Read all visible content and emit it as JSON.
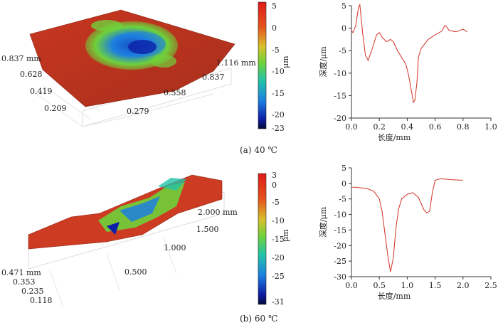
{
  "panels": [
    {
      "caption": "(a) 40 ℃",
      "surface_axes": {
        "y_labels": [
          "0.837 mm",
          "0.628",
          "0.419",
          "0.209"
        ],
        "x_labels": [
          "1.116 mm",
          "0.837",
          "0.558",
          "0.279"
        ]
      },
      "colorbar": {
        "ticks": [
          "5",
          "0",
          "-5",
          "-10",
          "-15",
          "-20",
          "-23"
        ],
        "unit": "μm"
      },
      "colors": {
        "high": "#d42a1e",
        "mid": "#6fd13b",
        "low": "#0d1fa8",
        "base": "#cc3b22"
      }
    },
    {
      "caption": "(b) 60 ℃",
      "surface_axes": {
        "y_labels": [
          "0.471 mm",
          "0.353",
          "0.235",
          "0.118"
        ],
        "x_labels": [
          "2.000 mm",
          "1.500",
          "1.000",
          "0.500"
        ]
      },
      "colorbar": {
        "ticks": [
          "3",
          "0",
          "-5",
          "-10",
          "-15",
          "-20",
          "-25",
          "-31"
        ],
        "unit": "μm"
      },
      "colors": {
        "high": "#d42a1e",
        "mid": "#6fd13b",
        "low": "#0d1fa8",
        "base": "#cc3b22"
      }
    }
  ],
  "chart_data": [
    {
      "type": "line",
      "xlabel": "长度/mm",
      "ylabel": "深度/μm",
      "xlim": [
        0.0,
        1.0
      ],
      "ylim": [
        -20,
        5
      ],
      "xticks": [
        "0.0",
        "0.2",
        "0.4",
        "0.6",
        "0.8",
        "1.0"
      ],
      "yticks": [
        "5",
        "0",
        "-5",
        "-10",
        "-15",
        "-20"
      ],
      "color": "#d33a2c",
      "series": [
        {
          "x": [
            0.0,
            0.01,
            0.03,
            0.05,
            0.06,
            0.08,
            0.1,
            0.12,
            0.15,
            0.18,
            0.2,
            0.22,
            0.25,
            0.28,
            0.3,
            0.33,
            0.36,
            0.39,
            0.41,
            0.43,
            0.445,
            0.455,
            0.47,
            0.48,
            0.5,
            0.55,
            0.6,
            0.65,
            0.67,
            0.68,
            0.7,
            0.75,
            0.8,
            0.83
          ],
          "y": [
            -0.5,
            -1.0,
            0.5,
            4.5,
            5.2,
            -1.0,
            -6.0,
            -7.2,
            -4.5,
            -1.5,
            -1.0,
            -2.0,
            -3.0,
            -2.5,
            -3.0,
            -5.0,
            -6.5,
            -8.0,
            -10.5,
            -14.0,
            -16.5,
            -16.0,
            -12.0,
            -6.5,
            -4.5,
            -2.5,
            -1.5,
            -0.6,
            0.6,
            0.4,
            -0.5,
            -0.8,
            -0.2,
            -0.8
          ]
        }
      ]
    },
    {
      "type": "line",
      "xlabel": "长度/mm",
      "ylabel": "深度/μm",
      "xlim": [
        0.0,
        2.5
      ],
      "ylim": [
        -30,
        5
      ],
      "xticks": [
        "0.0",
        "0.5",
        "1.0",
        "1.5",
        "2.0",
        "2.5"
      ],
      "yticks": [
        "5",
        "0",
        "-5",
        "-10",
        "-15",
        "-20",
        "-25",
        "-30"
      ],
      "color": "#d33a2c",
      "series": [
        {
          "x": [
            0.0,
            0.1,
            0.2,
            0.3,
            0.4,
            0.5,
            0.55,
            0.6,
            0.65,
            0.7,
            0.75,
            0.8,
            0.85,
            0.9,
            1.0,
            1.1,
            1.2,
            1.3,
            1.35,
            1.4,
            1.45,
            1.5,
            1.6,
            1.8,
            2.0
          ],
          "y": [
            -1.2,
            -1.3,
            -1.5,
            -1.8,
            -2.5,
            -5.0,
            -9.0,
            -16.0,
            -23.0,
            -28.5,
            -24.0,
            -14.0,
            -8.0,
            -5.0,
            -3.5,
            -3.0,
            -4.5,
            -8.5,
            -9.5,
            -9.0,
            -3.0,
            1.0,
            1.5,
            1.2,
            1.0
          ]
        }
      ]
    }
  ]
}
